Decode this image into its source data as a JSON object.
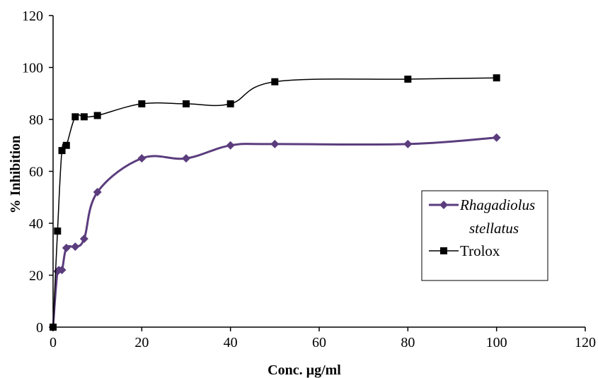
{
  "chart_data": {
    "type": "line",
    "title": "",
    "xlabel": "Conc. µg/ml",
    "ylabel": "% Inhibition",
    "xlim": [
      0,
      120
    ],
    "ylim": [
      0,
      120
    ],
    "xticks": [
      0,
      20,
      40,
      60,
      80,
      100,
      120
    ],
    "yticks": [
      0,
      20,
      40,
      60,
      80,
      100,
      120
    ],
    "grid": false,
    "legend_position": "right",
    "series": [
      {
        "name": "Rhagadiolus stellatus",
        "legend_lines": [
          "Rhagadiolus",
          "stellatus"
        ],
        "color": "#5b3d7d",
        "marker": "diamond",
        "x": [
          0,
          1,
          2,
          3,
          5,
          7,
          10,
          20,
          30,
          40,
          50,
          80,
          100
        ],
        "y": [
          0,
          21.5,
          22,
          30.5,
          31,
          34,
          52,
          65,
          65,
          70,
          70.5,
          70.5,
          73
        ]
      },
      {
        "name": "Trolox",
        "legend_lines": [
          "Trolox"
        ],
        "color": "#000000",
        "marker": "square",
        "x": [
          0,
          1,
          2,
          3,
          5,
          7,
          10,
          20,
          30,
          40,
          50,
          80,
          100
        ],
        "y": [
          0,
          37,
          68,
          70,
          81,
          81,
          81.5,
          86,
          86,
          86,
          94.5,
          95.5,
          96
        ]
      }
    ]
  }
}
